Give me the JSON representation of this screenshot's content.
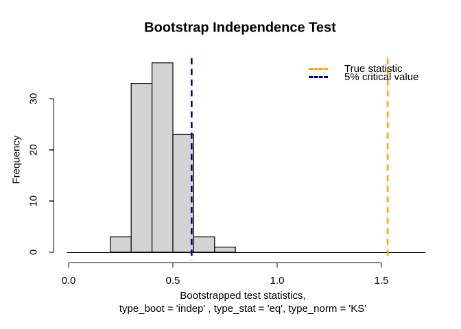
{
  "title": "Bootstrap Independence Test",
  "x_axis": {
    "label_line1": "Bootstrapped test statistics,",
    "label_line2": "type_boot = 'indep' , type_stat = 'eq', type_norm = 'KS'",
    "ticks": [
      {
        "value": 0.0,
        "label": "0.0"
      },
      {
        "value": 0.5,
        "label": "0.5"
      },
      {
        "value": 1.0,
        "label": "1.0"
      },
      {
        "value": 1.5,
        "label": "1.5"
      }
    ]
  },
  "y_axis": {
    "label": "Frequency",
    "ticks": [
      {
        "value": 0,
        "label": "0"
      },
      {
        "value": 10,
        "label": "10"
      },
      {
        "value": 20,
        "label": "20"
      },
      {
        "value": 30,
        "label": "30"
      }
    ]
  },
  "legend": {
    "items": [
      {
        "label": "True statistic",
        "color": "#FFA500",
        "style": "dashed"
      },
      {
        "label": "5% critical value",
        "color": "#000080",
        "style": "dashed"
      }
    ],
    "position": "top-right"
  },
  "chart_data": {
    "type": "bar",
    "subtype": "histogram",
    "title": "Bootstrap Independence Test",
    "xlabel": "Bootstrapped test statistics, type_boot = 'indep' , type_stat = 'eq', type_norm = 'KS'",
    "ylabel": "Frequency",
    "xlim": [
      0,
      1.5
    ],
    "ylim": [
      0,
      30
    ],
    "grid": false,
    "bin_width": 0.1,
    "bins": [
      {
        "start": 0.2,
        "end": 0.3,
        "frequency": 3
      },
      {
        "start": 0.3,
        "end": 0.4,
        "frequency": 33
      },
      {
        "start": 0.4,
        "end": 0.5,
        "frequency": 37
      },
      {
        "start": 0.5,
        "end": 0.6,
        "frequency": 23
      },
      {
        "start": 0.6,
        "end": 0.7,
        "frequency": 3
      },
      {
        "start": 0.7,
        "end": 0.8,
        "frequency": 1
      }
    ],
    "total_count": 100,
    "bar_fill": "#D3D3D3",
    "bar_border": "#000000",
    "vlines": [
      {
        "name": "critical-value",
        "value": 0.59,
        "color": "#000080",
        "style": "dashed",
        "label": "5% critical value"
      },
      {
        "name": "true-statistic",
        "value": 1.53,
        "color": "#FFA500",
        "style": "dashed",
        "label": "True statistic"
      }
    ],
    "legend_position": "top-right"
  }
}
